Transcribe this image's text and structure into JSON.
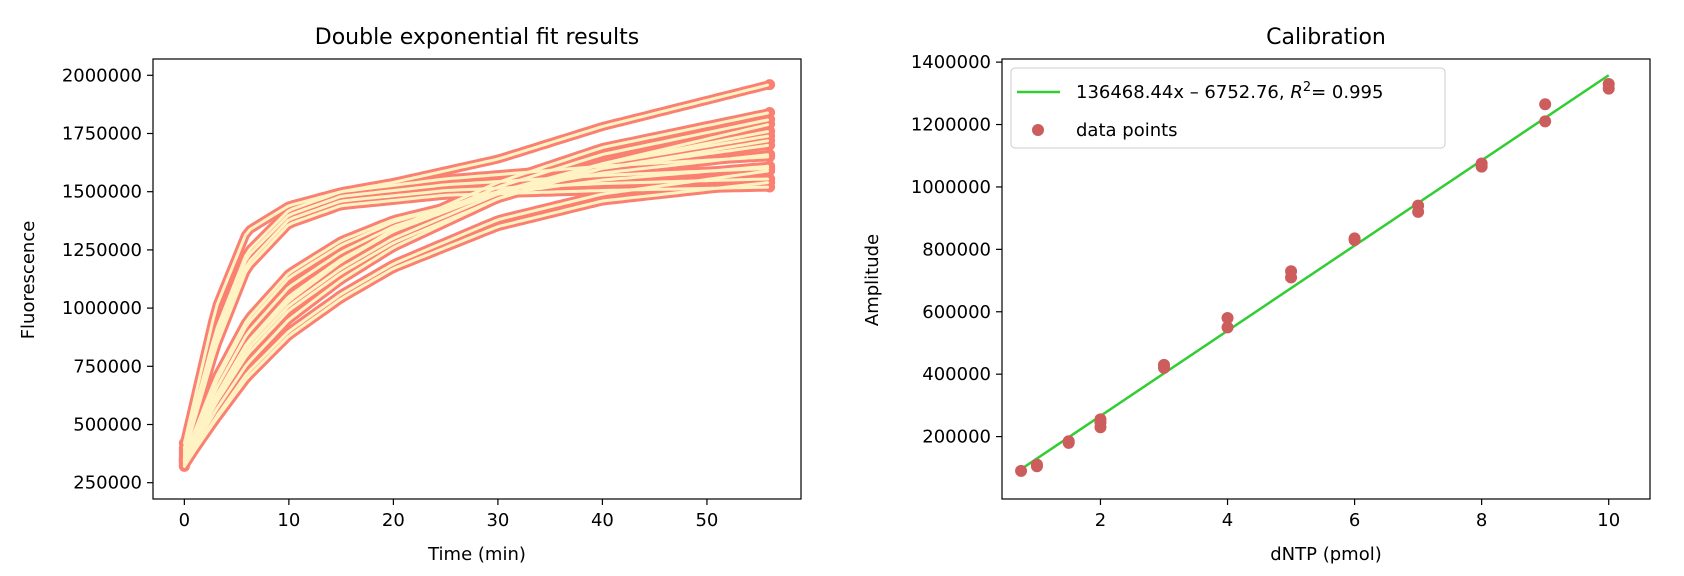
{
  "charts": [
    {
      "type": "line",
      "title": "Double exponential fit results",
      "xlabel": "Time (min)",
      "ylabel": "Fluorescence",
      "xlim": [
        -3,
        59
      ],
      "ylim": [
        180000,
        2070000
      ],
      "xticks": [
        0,
        10,
        20,
        30,
        40,
        50
      ],
      "yticks": [
        250000,
        500000,
        750000,
        1000000,
        1250000,
        1500000,
        1750000,
        2000000
      ],
      "data_color": "#fa8072",
      "fit_color": "#fff3c4",
      "data_marker": "circle",
      "series": [
        {
          "values": [
            {
              "x": 0,
              "y": 400000
            },
            {
              "x": 3,
              "y": 900000
            },
            {
              "x": 6,
              "y": 1240000
            },
            {
              "x": 10,
              "y": 1420000
            },
            {
              "x": 15,
              "y": 1500000
            },
            {
              "x": 25,
              "y": 1555000
            },
            {
              "x": 40,
              "y": 1610000
            },
            {
              "x": 56,
              "y": 1650000
            }
          ]
        },
        {
          "values": [
            {
              "x": 0,
              "y": 390000
            },
            {
              "x": 3,
              "y": 880000
            },
            {
              "x": 6,
              "y": 1220000
            },
            {
              "x": 10,
              "y": 1400000
            },
            {
              "x": 15,
              "y": 1480000
            },
            {
              "x": 25,
              "y": 1530000
            },
            {
              "x": 40,
              "y": 1570000
            },
            {
              "x": 56,
              "y": 1600000
            }
          ]
        },
        {
          "values": [
            {
              "x": 0,
              "y": 380000
            },
            {
              "x": 3,
              "y": 850000
            },
            {
              "x": 6,
              "y": 1190000
            },
            {
              "x": 10,
              "y": 1380000
            },
            {
              "x": 15,
              "y": 1460000
            },
            {
              "x": 25,
              "y": 1505000
            },
            {
              "x": 40,
              "y": 1535000
            },
            {
              "x": 56,
              "y": 1555000
            }
          ]
        },
        {
          "values": [
            {
              "x": 0,
              "y": 370000
            },
            {
              "x": 3,
              "y": 830000
            },
            {
              "x": 6,
              "y": 1170000
            },
            {
              "x": 10,
              "y": 1360000
            },
            {
              "x": 15,
              "y": 1440000
            },
            {
              "x": 25,
              "y": 1485000
            },
            {
              "x": 40,
              "y": 1505000
            },
            {
              "x": 56,
              "y": 1520000
            }
          ]
        },
        {
          "values": [
            {
              "x": 0,
              "y": 360000
            },
            {
              "x": 3,
              "y": 700000
            },
            {
              "x": 6,
              "y": 950000
            },
            {
              "x": 10,
              "y": 1150000
            },
            {
              "x": 15,
              "y": 1290000
            },
            {
              "x": 20,
              "y": 1380000
            },
            {
              "x": 30,
              "y": 1490000
            },
            {
              "x": 40,
              "y": 1550000
            },
            {
              "x": 56,
              "y": 1610000
            }
          ]
        },
        {
          "values": [
            {
              "x": 0,
              "y": 355000
            },
            {
              "x": 3,
              "y": 680000
            },
            {
              "x": 6,
              "y": 930000
            },
            {
              "x": 10,
              "y": 1130000
            },
            {
              "x": 15,
              "y": 1270000
            },
            {
              "x": 20,
              "y": 1370000
            },
            {
              "x": 30,
              "y": 1500000
            },
            {
              "x": 40,
              "y": 1580000
            },
            {
              "x": 56,
              "y": 1660000
            }
          ]
        },
        {
          "values": [
            {
              "x": 0,
              "y": 350000
            },
            {
              "x": 3,
              "y": 650000
            },
            {
              "x": 6,
              "y": 890000
            },
            {
              "x": 10,
              "y": 1090000
            },
            {
              "x": 15,
              "y": 1240000
            },
            {
              "x": 20,
              "y": 1350000
            },
            {
              "x": 30,
              "y": 1500000
            },
            {
              "x": 40,
              "y": 1600000
            },
            {
              "x": 56,
              "y": 1700000
            }
          ]
        },
        {
          "values": [
            {
              "x": 0,
              "y": 345000
            },
            {
              "x": 3,
              "y": 620000
            },
            {
              "x": 6,
              "y": 850000
            },
            {
              "x": 10,
              "y": 1050000
            },
            {
              "x": 15,
              "y": 1210000
            },
            {
              "x": 20,
              "y": 1330000
            },
            {
              "x": 30,
              "y": 1500000
            },
            {
              "x": 40,
              "y": 1620000
            },
            {
              "x": 56,
              "y": 1740000
            }
          ]
        },
        {
          "values": [
            {
              "x": 0,
              "y": 340000
            },
            {
              "x": 3,
              "y": 600000
            },
            {
              "x": 6,
              "y": 820000
            },
            {
              "x": 10,
              "y": 1010000
            },
            {
              "x": 15,
              "y": 1170000
            },
            {
              "x": 20,
              "y": 1300000
            },
            {
              "x": 30,
              "y": 1490000
            },
            {
              "x": 40,
              "y": 1620000
            },
            {
              "x": 56,
              "y": 1760000
            }
          ]
        },
        {
          "values": [
            {
              "x": 0,
              "y": 350000
            },
            {
              "x": 3,
              "y": 620000
            },
            {
              "x": 6,
              "y": 850000
            },
            {
              "x": 10,
              "y": 1040000
            },
            {
              "x": 15,
              "y": 1200000
            },
            {
              "x": 20,
              "y": 1330000
            },
            {
              "x": 30,
              "y": 1520000
            },
            {
              "x": 40,
              "y": 1660000
            },
            {
              "x": 56,
              "y": 1810000
            }
          ]
        },
        {
          "values": [
            {
              "x": 0,
              "y": 345000
            },
            {
              "x": 3,
              "y": 610000
            },
            {
              "x": 6,
              "y": 840000
            },
            {
              "x": 10,
              "y": 1030000
            },
            {
              "x": 15,
              "y": 1200000
            },
            {
              "x": 20,
              "y": 1340000
            },
            {
              "x": 30,
              "y": 1540000
            },
            {
              "x": 40,
              "y": 1690000
            },
            {
              "x": 56,
              "y": 1840000
            }
          ]
        },
        {
          "values": [
            {
              "x": 0,
              "y": 330000
            },
            {
              "x": 3,
              "y": 560000
            },
            {
              "x": 6,
              "y": 760000
            },
            {
              "x": 10,
              "y": 950000
            },
            {
              "x": 15,
              "y": 1120000
            },
            {
              "x": 20,
              "y": 1260000
            },
            {
              "x": 30,
              "y": 1470000
            },
            {
              "x": 40,
              "y": 1620000
            },
            {
              "x": 56,
              "y": 1790000
            }
          ]
        },
        {
          "values": [
            {
              "x": 0,
              "y": 320000
            },
            {
              "x": 3,
              "y": 530000
            },
            {
              "x": 6,
              "y": 720000
            },
            {
              "x": 10,
              "y": 900000
            },
            {
              "x": 15,
              "y": 1060000
            },
            {
              "x": 20,
              "y": 1190000
            },
            {
              "x": 30,
              "y": 1380000
            },
            {
              "x": 40,
              "y": 1490000
            },
            {
              "x": 56,
              "y": 1590000
            }
          ]
        },
        {
          "values": [
            {
              "x": 0,
              "y": 325000
            },
            {
              "x": 3,
              "y": 520000
            },
            {
              "x": 6,
              "y": 700000
            },
            {
              "x": 10,
              "y": 880000
            },
            {
              "x": 15,
              "y": 1040000
            },
            {
              "x": 20,
              "y": 1170000
            },
            {
              "x": 30,
              "y": 1350000
            },
            {
              "x": 40,
              "y": 1460000
            },
            {
              "x": 56,
              "y": 1540000
            }
          ]
        },
        {
          "values": [
            {
              "x": 0,
              "y": 420000
            },
            {
              "x": 3,
              "y": 1000000
            },
            {
              "x": 6,
              "y": 1330000
            },
            {
              "x": 10,
              "y": 1440000
            },
            {
              "x": 15,
              "y": 1500000
            },
            {
              "x": 20,
              "y": 1540000
            },
            {
              "x": 30,
              "y": 1640000
            },
            {
              "x": 40,
              "y": 1780000
            },
            {
              "x": 56,
              "y": 1960000
            }
          ]
        },
        {
          "values": [
            {
              "x": 0,
              "y": 335000
            },
            {
              "x": 3,
              "y": 590000
            },
            {
              "x": 6,
              "y": 800000
            },
            {
              "x": 10,
              "y": 990000
            },
            {
              "x": 15,
              "y": 1150000
            },
            {
              "x": 20,
              "y": 1280000
            },
            {
              "x": 30,
              "y": 1470000
            },
            {
              "x": 40,
              "y": 1600000
            },
            {
              "x": 56,
              "y": 1720000
            }
          ]
        }
      ]
    },
    {
      "type": "scatter",
      "title": "Calibration",
      "xlabel": "dNTP (pmol)",
      "ylabel": "Amplitude",
      "xlim": [
        0.45,
        10.65
      ],
      "ylim": [
        0,
        1410000
      ],
      "xticks": [
        2,
        4,
        6,
        8,
        10
      ],
      "yticks": [
        200000,
        400000,
        600000,
        800000,
        1000000,
        1200000,
        1400000
      ],
      "fit": {
        "slope": 136468.44,
        "intercept": -6752.76,
        "x_range": [
          0.75,
          10
        ],
        "color": "#32cd32",
        "label_main": "136468.44x – 6752.76, ",
        "label_r": "R",
        "label_sup": "2",
        "label_tail": "= 0.995"
      },
      "points_label": "data points",
      "points_color": "#cd5c5c",
      "points": [
        {
          "x": 0.75,
          "y": 90000
        },
        {
          "x": 1.0,
          "y": 105000
        },
        {
          "x": 1.0,
          "y": 110000
        },
        {
          "x": 1.5,
          "y": 180000
        },
        {
          "x": 1.5,
          "y": 185000
        },
        {
          "x": 2.0,
          "y": 230000
        },
        {
          "x": 2.0,
          "y": 245000
        },
        {
          "x": 2.0,
          "y": 255000
        },
        {
          "x": 3.0,
          "y": 420000
        },
        {
          "x": 3.0,
          "y": 430000
        },
        {
          "x": 4.0,
          "y": 550000
        },
        {
          "x": 4.0,
          "y": 580000
        },
        {
          "x": 5.0,
          "y": 710000
        },
        {
          "x": 5.0,
          "y": 730000
        },
        {
          "x": 6.0,
          "y": 830000
        },
        {
          "x": 6.0,
          "y": 835000
        },
        {
          "x": 7.0,
          "y": 920000
        },
        {
          "x": 7.0,
          "y": 940000
        },
        {
          "x": 8.0,
          "y": 1065000
        },
        {
          "x": 8.0,
          "y": 1075000
        },
        {
          "x": 9.0,
          "y": 1210000
        },
        {
          "x": 9.0,
          "y": 1265000
        },
        {
          "x": 10.0,
          "y": 1315000
        },
        {
          "x": 10.0,
          "y": 1330000
        }
      ]
    }
  ]
}
